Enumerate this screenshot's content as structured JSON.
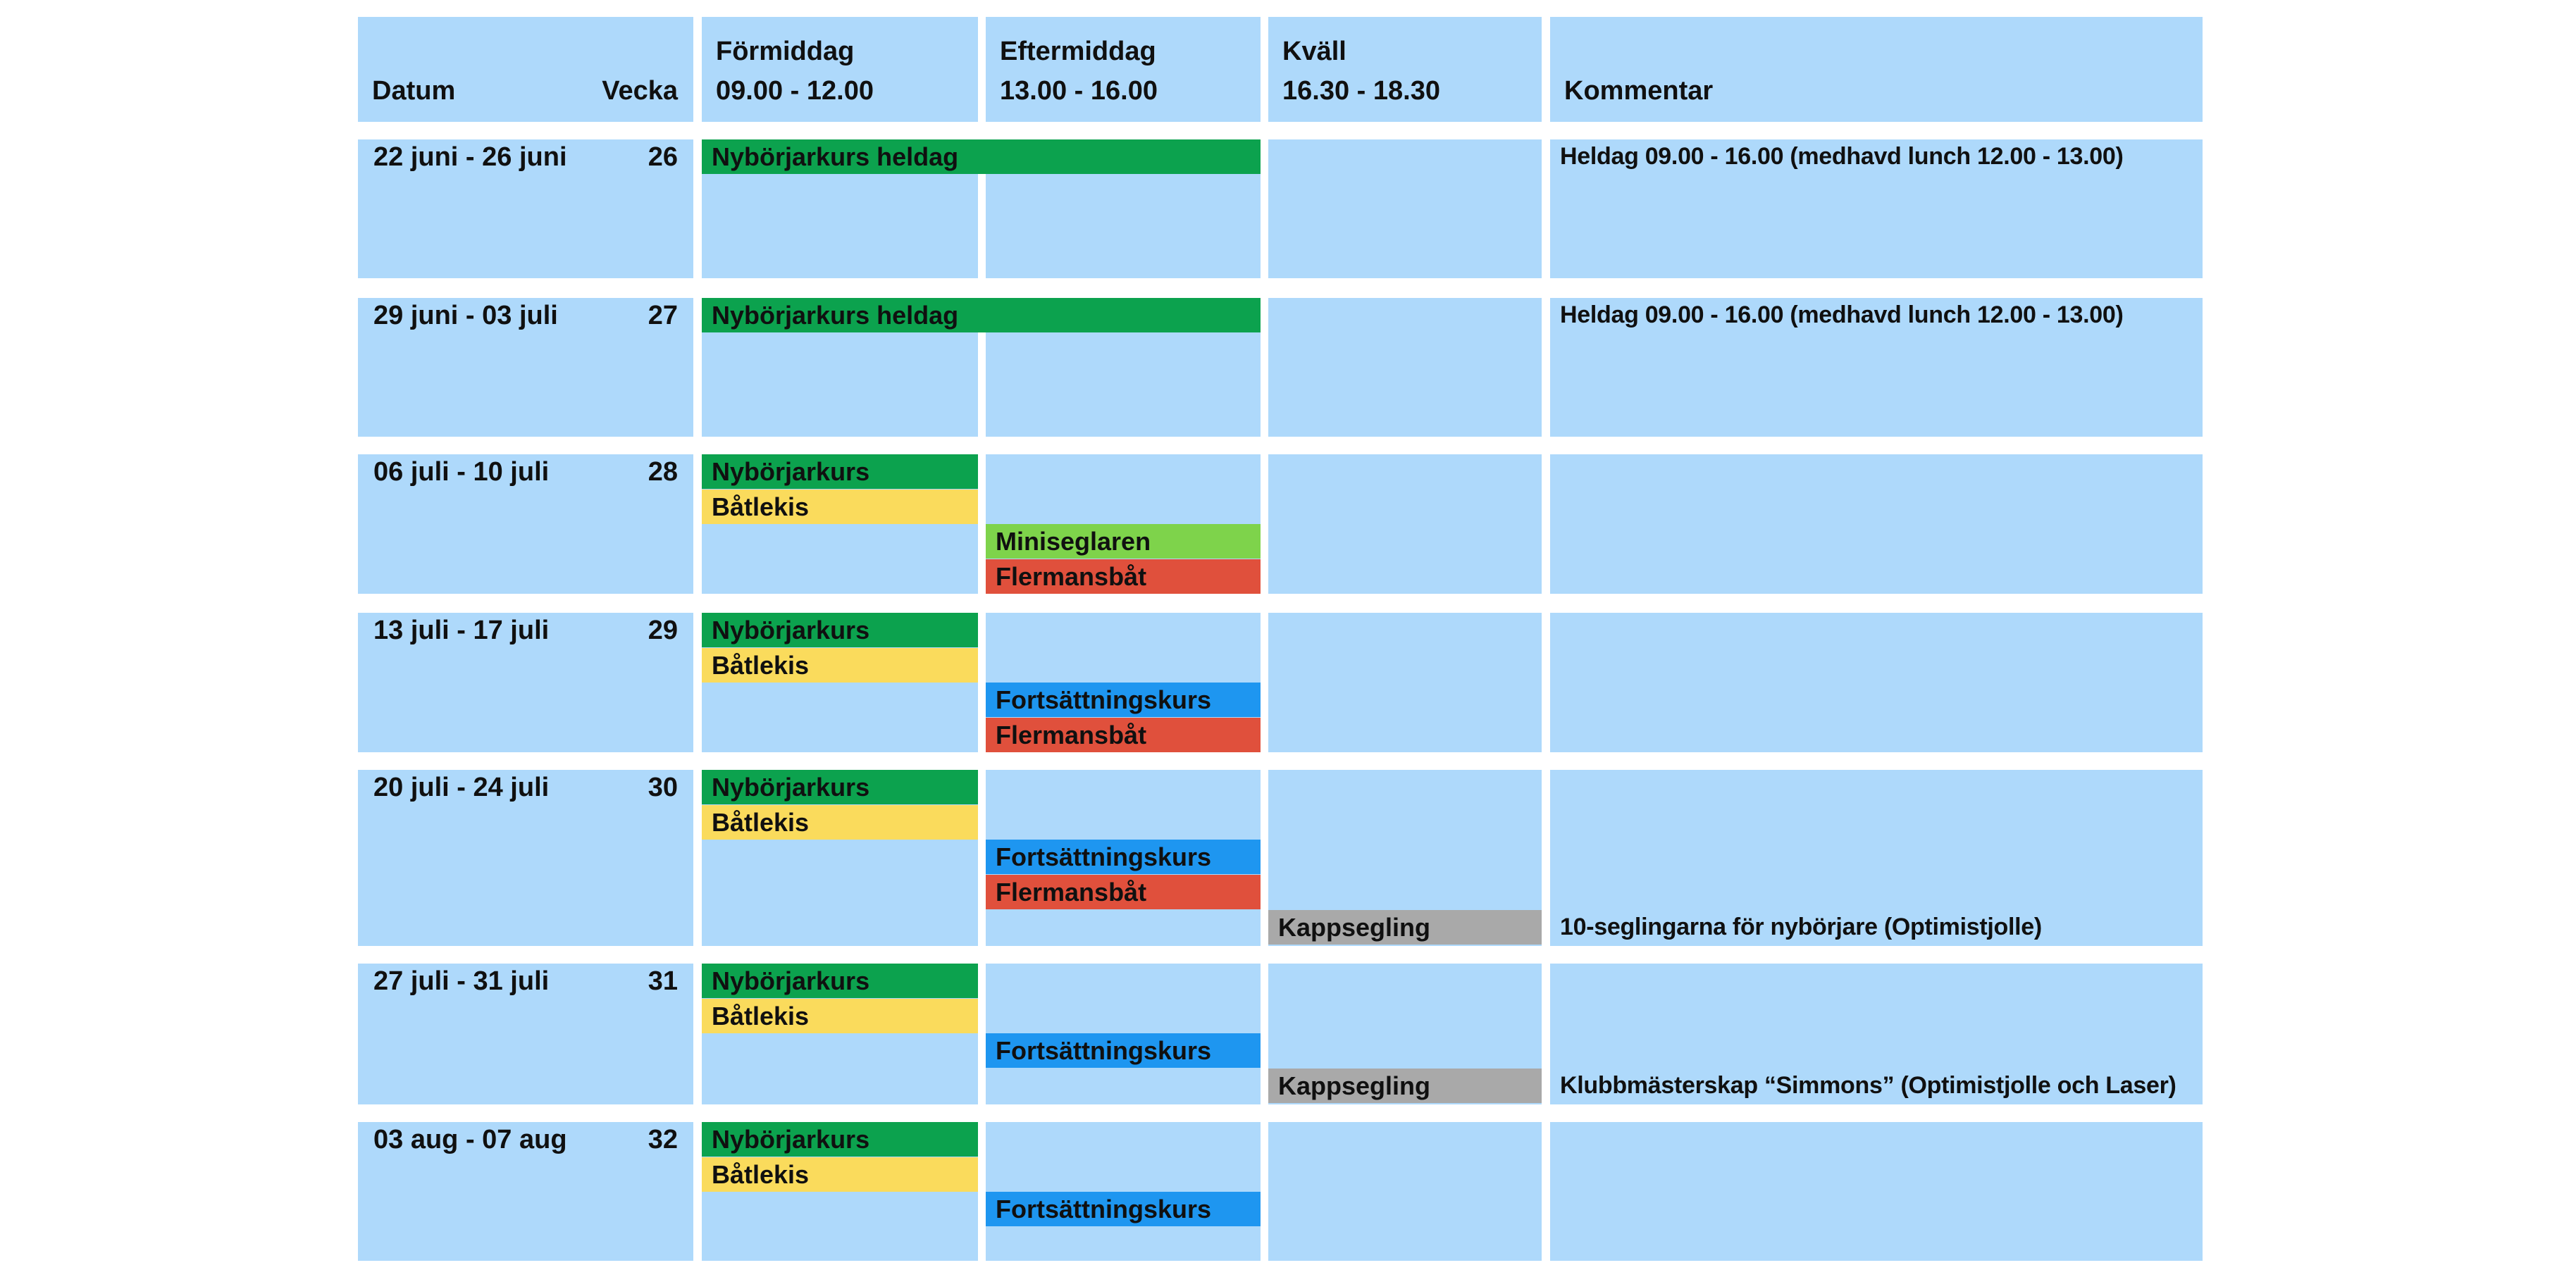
{
  "palette": {
    "cell_background": "#AED9FB",
    "nyborjarkurs_green": "#0CA24E",
    "batlekis_yellow": "#FADB5C",
    "miniseglaren_light_green": "#7ED34B",
    "flermansbat_red": "#E0503C",
    "fortsattningskurs_blue": "#1E96F0",
    "kappsegling_gray": "#A9A9A9",
    "text_color": "#101010",
    "page_background": "#FFFFFF"
  },
  "header": {
    "datum": "Datum",
    "vecka": "Vecka",
    "formiddag_title": "Förmiddag",
    "formiddag_time": "09.00 - 12.00",
    "eftermiddag_title": "Eftermiddag",
    "eftermiddag_time": "13.00 - 16.00",
    "kvall_title": "Kväll",
    "kvall_time": "16.30 - 18.30",
    "kommentar": "Kommentar"
  },
  "rows": [
    {
      "datum": "22 juni - 26 juni",
      "vecka": "26",
      "events": [
        {
          "label": "Nybörjarkurs heldag"
        }
      ],
      "kommentar": "Heldag 09.00 - 16.00 (medhavd lunch 12.00 - 13.00)"
    },
    {
      "datum": "29 juni - 03 juli",
      "vecka": "27",
      "events": [
        {
          "label": "Nybörjarkurs heldag"
        }
      ],
      "kommentar": "Heldag 09.00 - 16.00 (medhavd lunch 12.00 - 13.00)"
    },
    {
      "datum": "06 juli - 10 juli",
      "vecka": "28",
      "events": [
        {
          "label": "Nybörjarkurs"
        },
        {
          "label": "Båtlekis"
        },
        {
          "label": "Miniseglaren"
        },
        {
          "label": "Flermansbåt"
        }
      ],
      "kommentar": ""
    },
    {
      "datum": "13 juli - 17 juli",
      "vecka": "29",
      "events": [
        {
          "label": "Nybörjarkurs"
        },
        {
          "label": "Båtlekis"
        },
        {
          "label": "Fortsättningskurs"
        },
        {
          "label": "Flermansbåt"
        }
      ],
      "kommentar": ""
    },
    {
      "datum": "20 juli - 24 juli",
      "vecka": "30",
      "events": [
        {
          "label": "Nybörjarkurs"
        },
        {
          "label": "Båtlekis"
        },
        {
          "label": "Fortsättningskurs"
        },
        {
          "label": "Flermansbåt"
        },
        {
          "label": "Kappsegling"
        }
      ],
      "kommentar": "10-seglingarna för nybörjare (Optimistjolle)"
    },
    {
      "datum": "27 juli - 31 juli",
      "vecka": "31",
      "events": [
        {
          "label": "Nybörjarkurs"
        },
        {
          "label": "Båtlekis"
        },
        {
          "label": "Fortsättningskurs"
        },
        {
          "label": "Kappsegling"
        }
      ],
      "kommentar": "Klubbmästerskap “Simmons” (Optimistjolle och Laser)"
    },
    {
      "datum": "03 aug - 07 aug",
      "vecka": "32",
      "events": [
        {
          "label": "Nybörjarkurs"
        },
        {
          "label": "Båtlekis"
        },
        {
          "label": "Fortsättningskurs"
        }
      ],
      "kommentar": ""
    }
  ]
}
